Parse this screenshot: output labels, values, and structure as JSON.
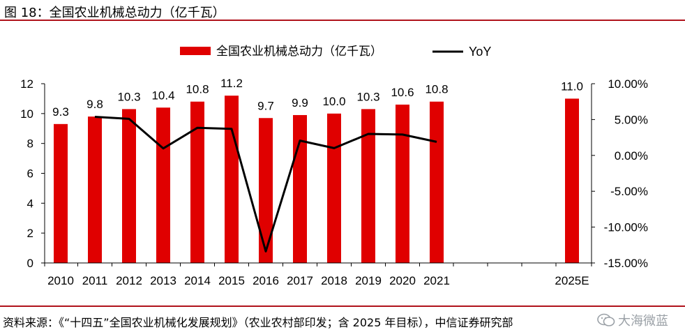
{
  "header": {
    "figure_title": "图 18：全国农业机械总动力（亿千瓦）"
  },
  "footer": {
    "source": "资料来源：《“十四五”全国农业机械化发展规划》（农业农村部印发；含 2025 年目标），中信证券研究部",
    "watermark": "大海微蓝",
    "watermark_icon": "wechat-icon"
  },
  "chart_data": {
    "type": "bar",
    "title": "",
    "categories": [
      "2010",
      "2011",
      "2012",
      "2013",
      "2014",
      "2015",
      "2016",
      "2017",
      "2018",
      "2019",
      "2020",
      "2021",
      "2025E"
    ],
    "series": [
      {
        "name": "全国农业机械总动力（亿千瓦）",
        "type": "bar",
        "axis": "left",
        "color": "#e00000",
        "values": [
          9.3,
          9.8,
          10.3,
          10.4,
          10.8,
          11.2,
          9.7,
          9.9,
          10.0,
          10.3,
          10.6,
          10.8,
          11.0
        ],
        "labels": [
          "9.3",
          "9.8",
          "10.3",
          "10.4",
          "10.8",
          "11.2",
          "9.7",
          "9.9",
          "10.0",
          "10.3",
          "10.6",
          "10.8",
          "11.0"
        ]
      },
      {
        "name": "YoY",
        "type": "line",
        "axis": "right",
        "color": "#000000",
        "values": [
          null,
          5.38,
          5.1,
          0.97,
          3.85,
          3.7,
          -13.39,
          2.06,
          1.01,
          3.0,
          2.91,
          1.89,
          null
        ]
      }
    ],
    "y_left": {
      "min": 0,
      "max": 12,
      "ticks": [
        "0",
        "2",
        "4",
        "6",
        "8",
        "10",
        "12"
      ]
    },
    "y_right": {
      "min": -15,
      "max": 10,
      "ticks": [
        "-15.00%",
        "-10.00%",
        "-5.00%",
        "0.00%",
        "5.00%",
        "10.00%"
      ]
    },
    "xlabel": "",
    "ylabel": "",
    "legend": "top-center",
    "grid": false
  }
}
